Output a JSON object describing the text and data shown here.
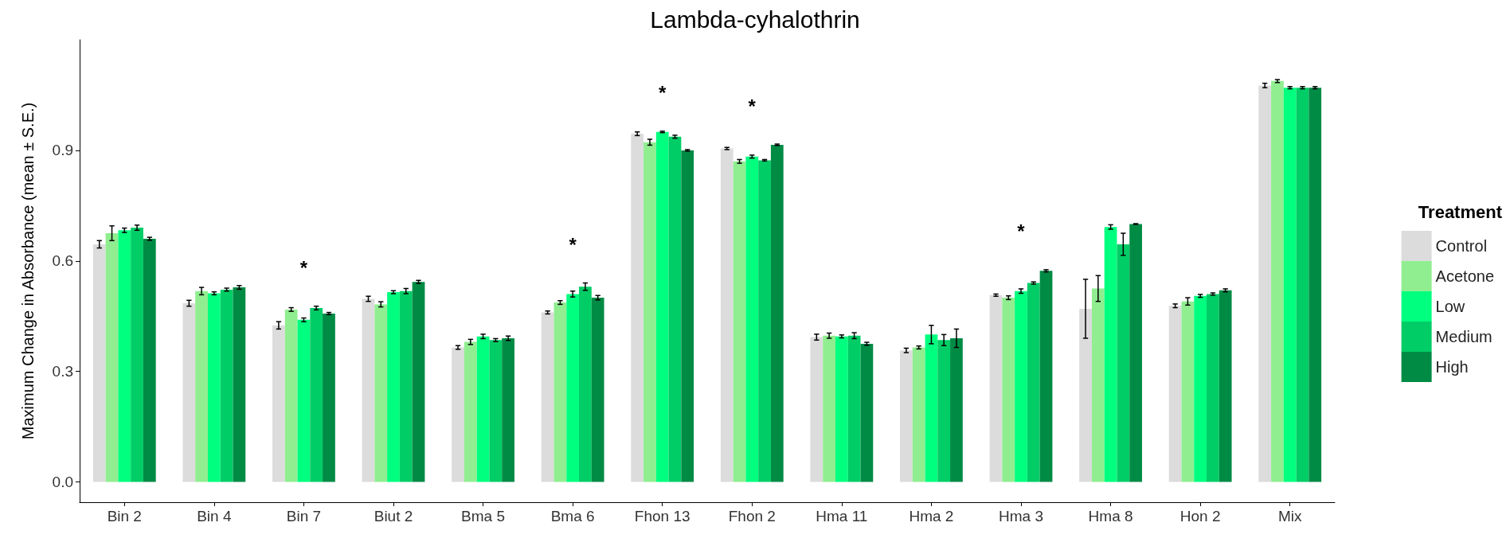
{
  "chart_data": {
    "type": "bar",
    "title": "Lambda-cyhalothrin",
    "ylabel": "Maximum Change in Absorbance (mean ± S.E.)",
    "legend_title": "Treatment",
    "legend": "right",
    "grid": false,
    "categories": [
      "Bin 2",
      "Bin 4",
      "Bin 7",
      "Biut 2",
      "Bma 5",
      "Bma 6",
      "Fhon 13",
      "Fhon 2",
      "Hma 11",
      "Hma 2",
      "Hma 3",
      "Hma 8",
      "Hon 2",
      "Mix"
    ],
    "ylim": [
      -0.055,
      1.2
    ],
    "yticks": [
      {
        "value": 0,
        "label": "0.0"
      },
      {
        "value": 0.3,
        "label": "0.3"
      },
      {
        "value": 0.6,
        "label": "0.6"
      },
      {
        "value": 0.9,
        "label": "0.9"
      }
    ],
    "series": [
      {
        "name": "Control",
        "color": "#dcdcdc",
        "values": [
          0.645,
          0.485,
          0.425,
          0.497,
          0.365,
          0.46,
          0.945,
          0.905,
          0.393,
          0.357,
          0.507,
          0.47,
          0.478,
          1.076
        ],
        "errors": [
          0.01,
          0.008,
          0.01,
          0.007,
          0.005,
          0.004,
          0.005,
          0.003,
          0.008,
          0.006,
          0.003,
          0.08,
          0.005,
          0.006
        ]
      },
      {
        "name": "Acetone",
        "color": "#90ee90",
        "values": [
          0.675,
          0.518,
          0.468,
          0.482,
          0.38,
          0.487,
          0.922,
          0.87,
          0.397,
          0.365,
          0.5,
          0.525,
          0.49,
          1.088
        ],
        "errors": [
          0.02,
          0.01,
          0.005,
          0.007,
          0.007,
          0.005,
          0.008,
          0.005,
          0.007,
          0.004,
          0.005,
          0.035,
          0.01,
          0.004
        ]
      },
      {
        "name": "Low",
        "color": "#00ff7f",
        "values": [
          0.683,
          0.512,
          0.44,
          0.515,
          0.395,
          0.51,
          0.95,
          0.883,
          0.395,
          0.4,
          0.518,
          0.692,
          0.505,
          1.07
        ],
        "errors": [
          0.006,
          0.004,
          0.005,
          0.004,
          0.006,
          0.008,
          0.002,
          0.004,
          0.004,
          0.025,
          0.006,
          0.006,
          0.004,
          0.003
        ]
      },
      {
        "name": "Medium",
        "color": "#00cd66",
        "values": [
          0.69,
          0.522,
          0.472,
          0.518,
          0.385,
          0.53,
          0.937,
          0.873,
          0.397,
          0.385,
          0.54,
          0.645,
          0.51,
          1.07
        ],
        "errors": [
          0.007,
          0.004,
          0.005,
          0.007,
          0.004,
          0.01,
          0.004,
          0.002,
          0.008,
          0.015,
          0.003,
          0.03,
          0.003,
          0.003
        ]
      },
      {
        "name": "High",
        "color": "#008b45",
        "values": [
          0.66,
          0.528,
          0.457,
          0.543,
          0.39,
          0.5,
          0.9,
          0.915,
          0.375,
          0.39,
          0.573,
          0.7,
          0.52,
          1.07
        ],
        "errors": [
          0.004,
          0.005,
          0.003,
          0.004,
          0.006,
          0.006,
          0.002,
          0.002,
          0.004,
          0.025,
          0.003,
          0.001,
          0.004,
          0.003
        ]
      }
    ],
    "annotations": [
      {
        "text": "*",
        "x": "Bin 7",
        "y": 0.44
      },
      {
        "text": "*",
        "x": "Bma 6",
        "y": 0.51
      },
      {
        "text": "*",
        "x": "Fhon 13",
        "y": 0.95
      },
      {
        "text": "*",
        "x": "Fhon 2",
        "y": 0.883
      },
      {
        "text": "*",
        "x": "Hma 3",
        "y": 0.518
      }
    ]
  }
}
